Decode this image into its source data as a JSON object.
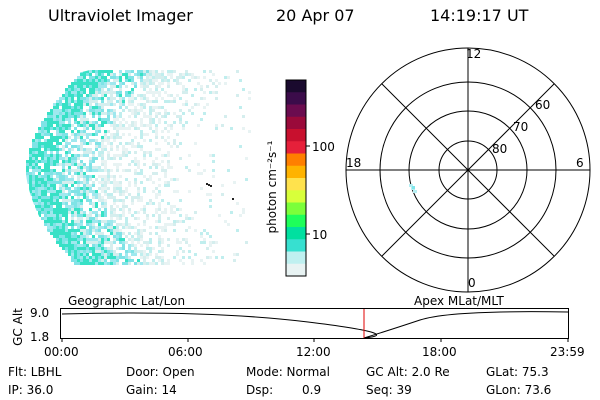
{
  "header": {
    "instrument": "Ultraviolet Imager",
    "date": "20 Apr 07",
    "time": "14:19:17 UT"
  },
  "colorbar": {
    "unit_label": "photon cm⁻²s⁻¹",
    "ticks": [
      "100",
      "10"
    ],
    "colors": [
      "#1a0a2e",
      "#3b0c4a",
      "#6b0c4f",
      "#9a0a3a",
      "#c8102e",
      "#e6203a",
      "#ff7f00",
      "#ffb300",
      "#ffe24d",
      "#d8ff3a",
      "#7cff3a",
      "#1eff5a",
      "#00e0a0",
      "#37e0d0",
      "#bff0f0",
      "#e8f3f3"
    ]
  },
  "polar": {
    "mlt_labels": {
      "top": "12",
      "left": "18",
      "right": "6",
      "bottom": "0"
    },
    "lat_labels": [
      "60",
      "70",
      "80"
    ]
  },
  "timeline": {
    "left_title": "Geographic Lat/Lon",
    "right_title": "Apex MLat/MLT",
    "axis_label": "GC Alt",
    "y_ticks": [
      "9.0",
      "1.8"
    ],
    "x_ticks": [
      "00:00",
      "06:00",
      "12:00",
      "18:00",
      "23:59"
    ]
  },
  "status": {
    "flt": "Flt: LBHL",
    "ip": "IP: 36.0",
    "door": "Door: Open",
    "gain": "Gain: 14",
    "mode": "Mode: Normal",
    "dsp_label": "Dsp:",
    "dsp_value": "0.9",
    "gcalt": "GC Alt: 2.0 Re",
    "seq": "Seq: 39",
    "glat": "GLat: 75.3",
    "glon": "GLon: 73.6"
  }
}
